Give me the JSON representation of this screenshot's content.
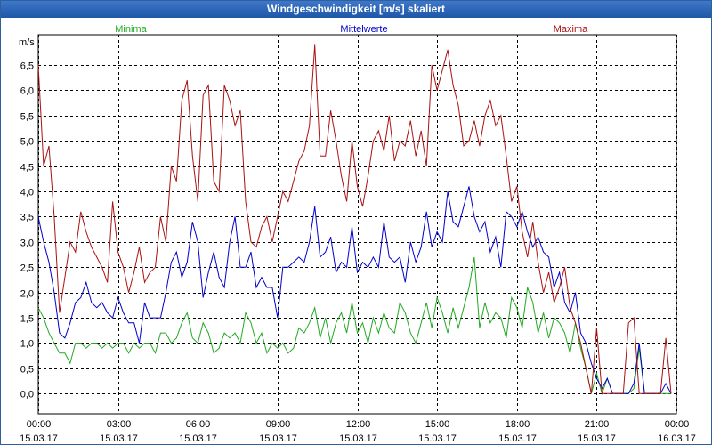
{
  "window": {
    "title": "Windgeschwindigkeit [m/s] skaliert"
  },
  "colors": {
    "min": "#22aa22",
    "mean": "#0000cc",
    "max": "#aa1111",
    "grid": "#000000"
  },
  "chart_data": {
    "type": "line",
    "title": "Windgeschwindigkeit [m/s] skaliert",
    "ylabel": "m/s",
    "xlabel": "",
    "ylim": [
      -0.4,
      7.1
    ],
    "xlim": [
      0,
      24
    ],
    "yticks": [
      0,
      0.5,
      1,
      1.5,
      2,
      2.5,
      3,
      3.5,
      4,
      4.5,
      5,
      5.5,
      6,
      6.5
    ],
    "ytick_labels": [
      "0,0",
      "0,5",
      "1,0",
      "1,5",
      "2,0",
      "2,5",
      "3,0",
      "3,5",
      "4,0",
      "4,5",
      "5,0",
      "5,5",
      "6,0",
      "6,5"
    ],
    "xticks": [
      {
        "x": 0,
        "time": "00:00",
        "date": "15.03.17"
      },
      {
        "x": 3,
        "time": "03:00",
        "date": "15.03.17"
      },
      {
        "x": 6,
        "time": "06:00",
        "date": "15.03.17"
      },
      {
        "x": 9,
        "time": "09:00",
        "date": "15.03.17"
      },
      {
        "x": 12,
        "time": "12:00",
        "date": "15.03.17"
      },
      {
        "x": 15,
        "time": "15:00",
        "date": "15.03.17"
      },
      {
        "x": 18,
        "time": "18:00",
        "date": "15.03.17"
      },
      {
        "x": 21,
        "time": "21:00",
        "date": "15.03.17"
      },
      {
        "x": 24,
        "time": "00:00",
        "date": "16.03.17"
      }
    ],
    "grid": true,
    "legend": [
      "Minima",
      "Mittelwerte",
      "Maxima"
    ],
    "series": [
      {
        "name": "Minima",
        "x": [
          0,
          0.2,
          0.4,
          0.6,
          0.8,
          1,
          1.2,
          1.4,
          1.6,
          1.8,
          2,
          2.2,
          2.4,
          2.6,
          2.8,
          3,
          3.2,
          3.4,
          3.6,
          3.8,
          4,
          4.2,
          4.4,
          4.6,
          4.8,
          5,
          5.2,
          5.4,
          5.6,
          5.8,
          6,
          6.2,
          6.4,
          6.6,
          6.8,
          7,
          7.2,
          7.4,
          7.6,
          7.8,
          8,
          8.2,
          8.4,
          8.6,
          8.8,
          9,
          9.2,
          9.4,
          9.6,
          9.8,
          10,
          10.2,
          10.4,
          10.6,
          10.8,
          11,
          11.2,
          11.4,
          11.6,
          11.8,
          12,
          12.2,
          12.4,
          12.6,
          12.8,
          13,
          13.2,
          13.4,
          13.6,
          13.8,
          14,
          14.2,
          14.4,
          14.6,
          14.8,
          15,
          15.2,
          15.4,
          15.6,
          15.8,
          16,
          16.2,
          16.4,
          16.6,
          16.8,
          17,
          17.2,
          17.4,
          17.6,
          17.8,
          18,
          18.2,
          18.4,
          18.6,
          18.8,
          19,
          19.2,
          19.4,
          19.6,
          19.8,
          20,
          20.2,
          20.4,
          20.6,
          20.8,
          21,
          21.2,
          21.4,
          21.6,
          21.8,
          22,
          22.2,
          22.4,
          22.6,
          22.8,
          23,
          23.2,
          23.4,
          23.6,
          23.8
        ],
        "values": [
          1.7,
          1.5,
          1.2,
          1.0,
          0.8,
          0.8,
          0.6,
          1.0,
          1.0,
          0.9,
          1.0,
          1.0,
          0.9,
          1.0,
          0.9,
          1.0,
          1.0,
          0.8,
          1.0,
          0.9,
          1.0,
          1.0,
          0.8,
          1.2,
          1.2,
          1.0,
          1.1,
          1.4,
          1.6,
          1.1,
          1.0,
          1.4,
          1.2,
          0.8,
          0.9,
          1.2,
          1.1,
          1.2,
          1.0,
          1.6,
          1.4,
          1.0,
          1.2,
          0.8,
          1.0,
          0.9,
          1.0,
          0.8,
          0.9,
          1.3,
          1.2,
          1.4,
          1.7,
          1.1,
          1.5,
          1.0,
          1.4,
          1.6,
          1.2,
          1.8,
          1.2,
          1.4,
          1.0,
          1.5,
          1.2,
          1.6,
          1.3,
          1.2,
          1.8,
          1.6,
          1.2,
          1.0,
          1.4,
          1.8,
          1.3,
          1.9,
          1.6,
          1.2,
          1.7,
          1.3,
          1.7,
          2.1,
          2.7,
          1.3,
          1.8,
          1.4,
          1.6,
          1.5,
          1.1,
          1.9,
          1.7,
          1.3,
          2.1,
          1.8,
          1.2,
          1.6,
          1.1,
          1.5,
          1.4,
          1.2,
          0.8,
          1.4,
          0.9,
          0.5,
          0.0,
          0.4,
          0.0,
          0.3,
          0.0,
          0.0,
          0.0,
          0.0,
          0.1,
          0.9,
          0.0,
          0.0,
          0.0,
          0.0,
          0.0,
          0.0
        ]
      },
      {
        "name": "Mittelwerte",
        "x": [
          0,
          0.2,
          0.4,
          0.6,
          0.8,
          1,
          1.2,
          1.4,
          1.6,
          1.8,
          2,
          2.2,
          2.4,
          2.6,
          2.8,
          3,
          3.2,
          3.4,
          3.6,
          3.8,
          4,
          4.2,
          4.4,
          4.6,
          4.8,
          5,
          5.2,
          5.4,
          5.6,
          5.8,
          6,
          6.2,
          6.4,
          6.6,
          6.8,
          7,
          7.2,
          7.4,
          7.6,
          7.8,
          8,
          8.2,
          8.4,
          8.6,
          8.8,
          9,
          9.2,
          9.4,
          9.6,
          9.8,
          10,
          10.2,
          10.4,
          10.6,
          10.8,
          11,
          11.2,
          11.4,
          11.6,
          11.8,
          12,
          12.2,
          12.4,
          12.6,
          12.8,
          13,
          13.2,
          13.4,
          13.6,
          13.8,
          14,
          14.2,
          14.4,
          14.6,
          14.8,
          15,
          15.2,
          15.4,
          15.6,
          15.8,
          16,
          16.2,
          16.4,
          16.6,
          16.8,
          17,
          17.2,
          17.4,
          17.6,
          17.8,
          18,
          18.2,
          18.4,
          18.6,
          18.8,
          19,
          19.2,
          19.4,
          19.6,
          19.8,
          20,
          20.2,
          20.4,
          20.6,
          20.8,
          21,
          21.2,
          21.4,
          21.6,
          21.8,
          22,
          22.2,
          22.4,
          22.6,
          22.8,
          23,
          23.2,
          23.4,
          23.6,
          23.8
        ],
        "values": [
          3.5,
          3.0,
          2.6,
          2.0,
          1.2,
          1.1,
          1.4,
          1.8,
          1.9,
          2.2,
          1.8,
          1.7,
          1.8,
          1.6,
          1.5,
          1.9,
          1.6,
          1.4,
          1.4,
          1.0,
          1.8,
          1.5,
          1.5,
          1.5,
          2.0,
          2.6,
          2.8,
          2.3,
          2.6,
          3.4,
          3.0,
          1.9,
          2.4,
          2.8,
          2.3,
          2.1,
          3.0,
          3.5,
          2.5,
          2.5,
          2.8,
          2.1,
          2.3,
          2.1,
          2.1,
          1.5,
          2.5,
          2.5,
          2.6,
          2.7,
          2.6,
          3.0,
          3.7,
          2.7,
          2.8,
          3.1,
          2.4,
          2.6,
          2.5,
          3.3,
          2.4,
          2.6,
          2.5,
          2.7,
          2.5,
          3.4,
          2.7,
          2.6,
          2.7,
          2.2,
          3.0,
          2.6,
          2.9,
          3.6,
          2.9,
          3.2,
          3.0,
          4.0,
          3.4,
          3.3,
          3.7,
          4.1,
          3.5,
          3.2,
          3.4,
          2.8,
          3.1,
          2.5,
          3.6,
          3.5,
          3.3,
          3.6,
          3.2,
          2.9,
          3.1,
          2.8,
          2.7,
          2.1,
          2.4,
          1.8,
          1.6,
          2.0,
          1.2,
          1.0,
          0.6,
          0.3,
          0.1,
          0.3,
          0.0,
          0.0,
          0.0,
          0.0,
          0.2,
          1.0,
          0.0,
          0.0,
          0.0,
          0.0,
          0.2,
          0.0
        ]
      },
      {
        "name": "Maxima",
        "x": [
          0,
          0.2,
          0.4,
          0.6,
          0.8,
          1,
          1.2,
          1.4,
          1.6,
          1.8,
          2,
          2.2,
          2.4,
          2.6,
          2.8,
          3,
          3.2,
          3.4,
          3.6,
          3.8,
          4,
          4.2,
          4.4,
          4.6,
          4.8,
          5,
          5.2,
          5.4,
          5.6,
          5.8,
          6,
          6.2,
          6.4,
          6.6,
          6.8,
          7,
          7.2,
          7.4,
          7.6,
          7.8,
          8,
          8.2,
          8.4,
          8.6,
          8.8,
          9,
          9.2,
          9.4,
          9.6,
          9.8,
          10,
          10.2,
          10.4,
          10.6,
          10.8,
          11,
          11.2,
          11.4,
          11.6,
          11.8,
          12,
          12.2,
          12.4,
          12.6,
          12.8,
          13,
          13.2,
          13.4,
          13.6,
          13.8,
          14,
          14.2,
          14.4,
          14.6,
          14.8,
          15,
          15.2,
          15.4,
          15.6,
          15.8,
          16,
          16.2,
          16.4,
          16.6,
          16.8,
          17,
          17.2,
          17.4,
          17.6,
          17.8,
          18,
          18.2,
          18.4,
          18.6,
          18.8,
          19,
          19.2,
          19.4,
          19.6,
          19.8,
          20,
          20.2,
          20.4,
          20.6,
          20.8,
          21,
          21.2,
          21.4,
          21.6,
          21.8,
          22,
          22.2,
          22.4,
          22.6,
          22.8,
          23,
          23.2,
          23.4,
          23.6,
          23.8
        ],
        "values": [
          6.5,
          4.5,
          4.9,
          3.5,
          1.6,
          2.3,
          3.0,
          2.8,
          3.6,
          3.2,
          2.9,
          2.7,
          2.5,
          2.2,
          3.8,
          2.8,
          2.5,
          2.0,
          2.4,
          2.9,
          2.2,
          2.4,
          2.5,
          3.5,
          3.0,
          4.5,
          4.2,
          5.8,
          6.2,
          4.7,
          3.8,
          5.9,
          6.1,
          4.2,
          4.0,
          6.1,
          5.8,
          5.3,
          5.6,
          3.8,
          3.0,
          2.9,
          3.3,
          3.5,
          3.0,
          3.5,
          4.0,
          3.8,
          4.2,
          4.6,
          4.8,
          5.3,
          6.9,
          4.7,
          4.7,
          5.6,
          5.0,
          4.3,
          3.8,
          5.0,
          4.1,
          3.7,
          4.3,
          5.0,
          5.2,
          4.8,
          5.5,
          4.6,
          5.0,
          4.9,
          5.4,
          4.7,
          5.2,
          4.5,
          6.5,
          6.0,
          6.4,
          6.8,
          6.1,
          5.7,
          4.9,
          5.0,
          5.4,
          4.9,
          5.5,
          5.8,
          5.3,
          5.5,
          4.7,
          3.8,
          4.1,
          3.2,
          2.7,
          3.4,
          2.6,
          2.0,
          2.4,
          1.8,
          2.1,
          2.5,
          1.7,
          1.4,
          1.0,
          0.5,
          0.0,
          1.3,
          0.0,
          0.0,
          0.0,
          0.0,
          0.0,
          1.4,
          1.5,
          0.0,
          0.0,
          0.0,
          0.0,
          0.0,
          1.1,
          0.0
        ]
      }
    ]
  }
}
